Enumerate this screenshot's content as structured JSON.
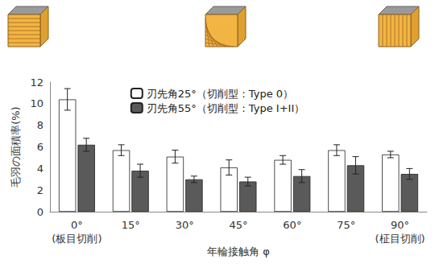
{
  "chart_data": {
    "type": "bar",
    "x_label": "年輪接触角 φ",
    "y_label": "毛羽の面積率(%)",
    "categories": [
      "0°",
      "15°",
      "30°",
      "45°",
      "60°",
      "75°",
      "90°"
    ],
    "annotations": [
      {
        "text": "(板目切削)",
        "category": "0°"
      },
      {
        "text": "(柾目切削)",
        "category": "90°"
      }
    ],
    "series": [
      {
        "name": "刃先角25°（切削型：Type 0）",
        "color": "#ffffff",
        "values": [
          10.4,
          5.7,
          5.1,
          4.1,
          4.8,
          5.7,
          5.3
        ],
        "errors": [
          1.0,
          0.5,
          0.6,
          0.7,
          0.4,
          0.5,
          0.3
        ]
      },
      {
        "name": "刃先角55°（切削型：Type I+II）",
        "color": "#5a5a5a",
        "values": [
          6.2,
          3.8,
          3.0,
          2.8,
          3.3,
          4.3,
          3.5
        ],
        "errors": [
          0.6,
          0.6,
          0.3,
          0.4,
          0.6,
          0.8,
          0.5
        ]
      }
    ],
    "ylim": [
      0,
      12
    ],
    "yticks": [
      0,
      2,
      4,
      6,
      8,
      10,
      12
    ],
    "grid": false,
    "legend": "upper center"
  }
}
